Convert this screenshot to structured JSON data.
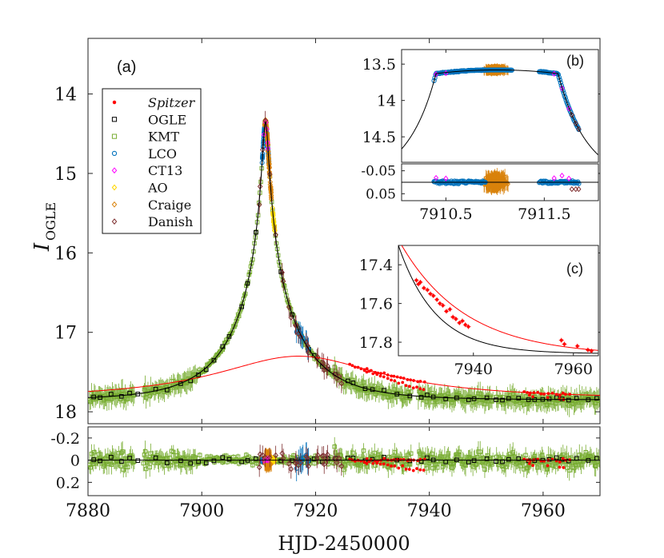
{
  "chart_data": [
    {
      "id": "main",
      "type": "scatter",
      "title": "",
      "panel_label": "(a)",
      "xlabel": "HJD-2450000",
      "ylabel_main": "I",
      "ylabel_sub": "OGLE",
      "xlim": [
        7880,
        7970
      ],
      "ylim": [
        18.15,
        13.3
      ],
      "y_inverted": true,
      "xticks": [
        7880,
        7900,
        7920,
        7940,
        7960
      ],
      "yticks": [
        14,
        15,
        16,
        17,
        18
      ],
      "legend": [
        {
          "label": "Spitzer",
          "marker": "dot",
          "color": "#ff0000",
          "italic": true
        },
        {
          "label": "OGLE",
          "marker": "square",
          "color": "#000000"
        },
        {
          "label": "KMT",
          "marker": "square",
          "color": "#77ac30"
        },
        {
          "label": "LCO",
          "marker": "circle",
          "color": "#0072bd"
        },
        {
          "label": "CT13",
          "marker": "diamond",
          "color": "#ff00ff"
        },
        {
          "label": "AO",
          "marker": "diamond",
          "color": "#ffd700"
        },
        {
          "label": "Craige",
          "marker": "diamond",
          "color": "#d9820b"
        },
        {
          "label": "Danish",
          "marker": "diamond",
          "color": "#7e2f30"
        }
      ],
      "legend_placement": "top-left",
      "model_ground": {
        "t0": 7911.2,
        "u0": 0.04,
        "tE": 12.0,
        "base": 17.85,
        "color": "#000000"
      },
      "model_spitzer": {
        "peak_time": 7917.0,
        "peak_mag": 17.3,
        "base": 17.85,
        "width": 18.0,
        "color": "#ff0000"
      }
    },
    {
      "id": "residuals",
      "type": "scatter",
      "xlim": [
        7880,
        7970
      ],
      "ylim": [
        0.32,
        -0.3
      ],
      "y_inverted": true,
      "yticks": [
        -0.2,
        0,
        0.2
      ],
      "ytick_labels": [
        "-0.2",
        "0",
        "0.2"
      ]
    },
    {
      "id": "inset_b",
      "type": "scatter",
      "panel_label": "(b)",
      "xlim": [
        7910.05,
        7912.05
      ],
      "ylim": [
        14.85,
        13.3
      ],
      "yticks": [
        13.5,
        14,
        14.5
      ],
      "ytick_labels": [
        "13.5",
        "14",
        "14.5"
      ],
      "res_ylim": [
        0.08,
        -0.08
      ],
      "res_yticks": [
        -0.05,
        0.05
      ],
      "res_ytick_labels": [
        "-0.05",
        "0.05"
      ],
      "xticks": [
        7910.5,
        7911.5
      ],
      "xtick_labels": [
        "7910.5",
        "7911.5"
      ]
    },
    {
      "id": "inset_c",
      "type": "scatter",
      "panel_label": "(c)",
      "xlim": [
        7925,
        7965
      ],
      "ylim": [
        17.87,
        17.3
      ],
      "yticks": [
        17.4,
        17.6,
        17.8
      ],
      "ytick_labels": [
        "17.4",
        "17.6",
        "17.8"
      ],
      "xticks": [
        7940,
        7960
      ],
      "xtick_labels": [
        "7940",
        "7960"
      ],
      "spitzer_points": [
        [
          7928.6,
          17.48
        ],
        [
          7929.0,
          17.5
        ],
        [
          7929.4,
          17.49
        ],
        [
          7930.1,
          17.52
        ],
        [
          7930.8,
          17.53
        ],
        [
          7931.4,
          17.55
        ],
        [
          7932.0,
          17.56
        ],
        [
          7932.7,
          17.58
        ],
        [
          7933.3,
          17.6
        ],
        [
          7933.9,
          17.61
        ],
        [
          7934.6,
          17.64
        ],
        [
          7935.3,
          17.63
        ],
        [
          7935.9,
          17.67
        ],
        [
          7936.5,
          17.68
        ],
        [
          7937.2,
          17.7
        ],
        [
          7937.8,
          17.69
        ],
        [
          7938.4,
          17.71
        ],
        [
          7939.0,
          17.72
        ],
        [
          7957.6,
          17.79
        ],
        [
          7958.2,
          17.81
        ],
        [
          7960.8,
          17.82
        ],
        [
          7962.9,
          17.84
        ],
        [
          7963.6,
          17.845
        ]
      ]
    }
  ]
}
